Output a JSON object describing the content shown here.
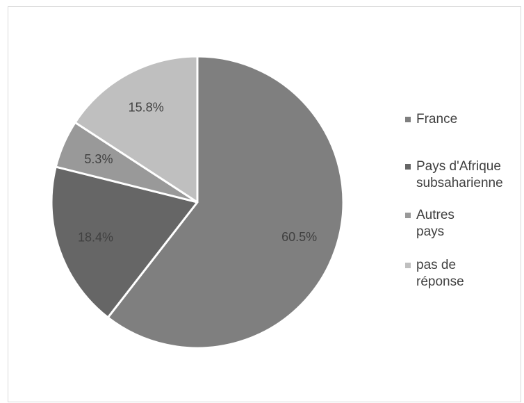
{
  "chart_data": {
    "type": "pie",
    "title": "",
    "categories": [
      "France",
      "Pays d'Afrique\nsubsaharienne",
      "Autres pays",
      "pas de réponse"
    ],
    "values": [
      60.5,
      18.4,
      5.3,
      15.8
    ],
    "data_labels": [
      "60.5%",
      "18.4%",
      "5.3%",
      "15.8%"
    ],
    "colors": [
      "#7f7f7f",
      "#666666",
      "#999999",
      "#bfbfbf"
    ],
    "start_angle_deg": 0,
    "direction": "clockwise",
    "legend_position": "right"
  }
}
